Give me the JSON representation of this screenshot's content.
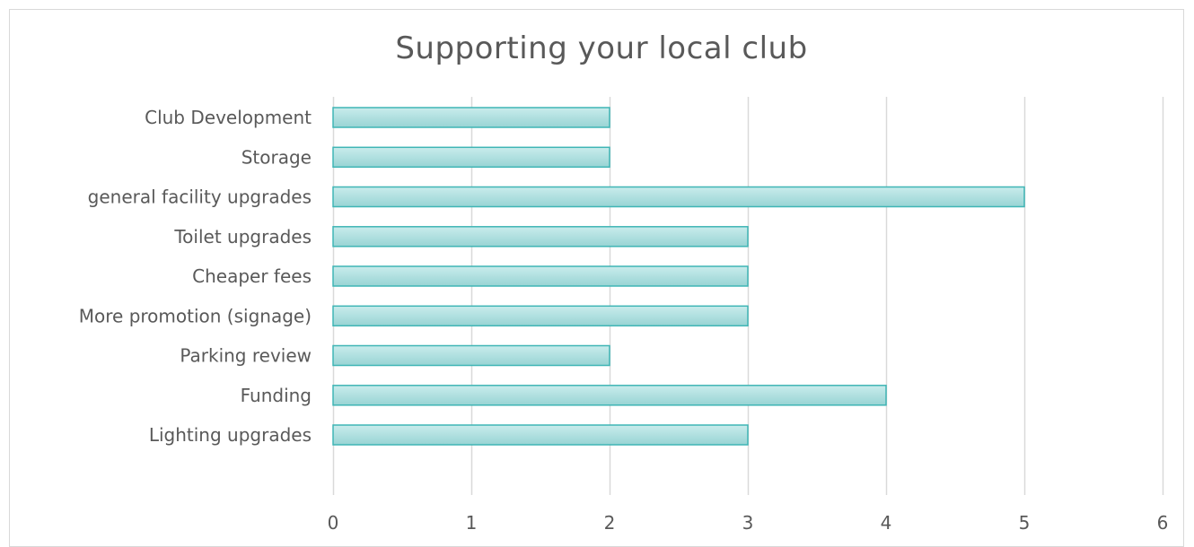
{
  "chart_data": {
    "type": "bar",
    "orientation": "horizontal",
    "title": "Supporting your local club",
    "xlabel": "",
    "ylabel": "",
    "categories": [
      "Club Development ",
      "Storage ",
      "general facility upgrades",
      "Toilet upgrades",
      "Cheaper fees",
      "More promotion (signage) ",
      "Parking review",
      "Funding",
      "Lighting upgrades"
    ],
    "values": [
      2,
      2,
      5,
      3,
      3,
      3,
      2,
      4,
      3
    ],
    "xlim": [
      0,
      6
    ],
    "xticks": [
      "0",
      "1",
      "2",
      "3",
      "4",
      "5",
      "6"
    ],
    "grid": "vertical",
    "legend": "none",
    "bar_fill": "#a8dcdc",
    "bar_stroke": "#3fb5b5",
    "grid_color": "#d9d9d9"
  }
}
